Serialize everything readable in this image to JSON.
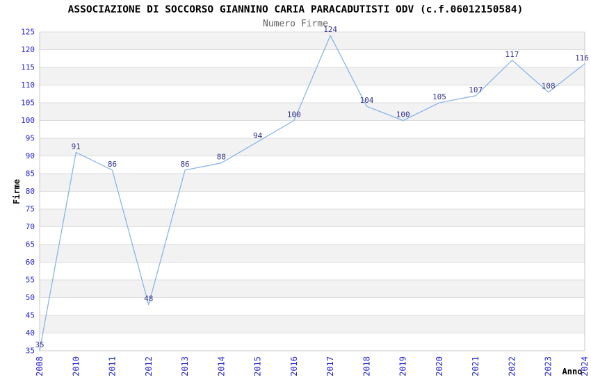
{
  "chart_data": {
    "type": "line",
    "title": "ASSOCIAZIONE DI SOCCORSO GIANNINO CARIA PARACADUTISTI ODV (c.f.06012150584)",
    "subtitle": "Numero Firme",
    "xlabel": "Anno",
    "ylabel": "Firme",
    "categories": [
      "2008",
      "2010",
      "2011",
      "2012",
      "2013",
      "2014",
      "2015",
      "2016",
      "2017",
      "2018",
      "2019",
      "2020",
      "2021",
      "2022",
      "2023",
      "2024"
    ],
    "values": [
      35,
      91,
      86,
      48,
      86,
      88,
      94,
      100,
      124,
      104,
      100,
      105,
      107,
      117,
      108,
      116
    ],
    "ylim": [
      35,
      125
    ],
    "ytick_step": 5,
    "yticks": [
      35,
      40,
      45,
      50,
      55,
      60,
      65,
      70,
      75,
      80,
      85,
      90,
      95,
      100,
      105,
      110,
      115,
      120,
      125
    ],
    "grid": true,
    "legend_position": "none",
    "colors": {
      "line": "#8ab5e8",
      "tick_label": "#2323cc",
      "data_label": "#32328c",
      "band": "#f2f2f2",
      "gridline": "#dcdcdc",
      "border": "#c9c9c9",
      "title": "#000000",
      "subtitle": "#5f5f5f"
    }
  }
}
